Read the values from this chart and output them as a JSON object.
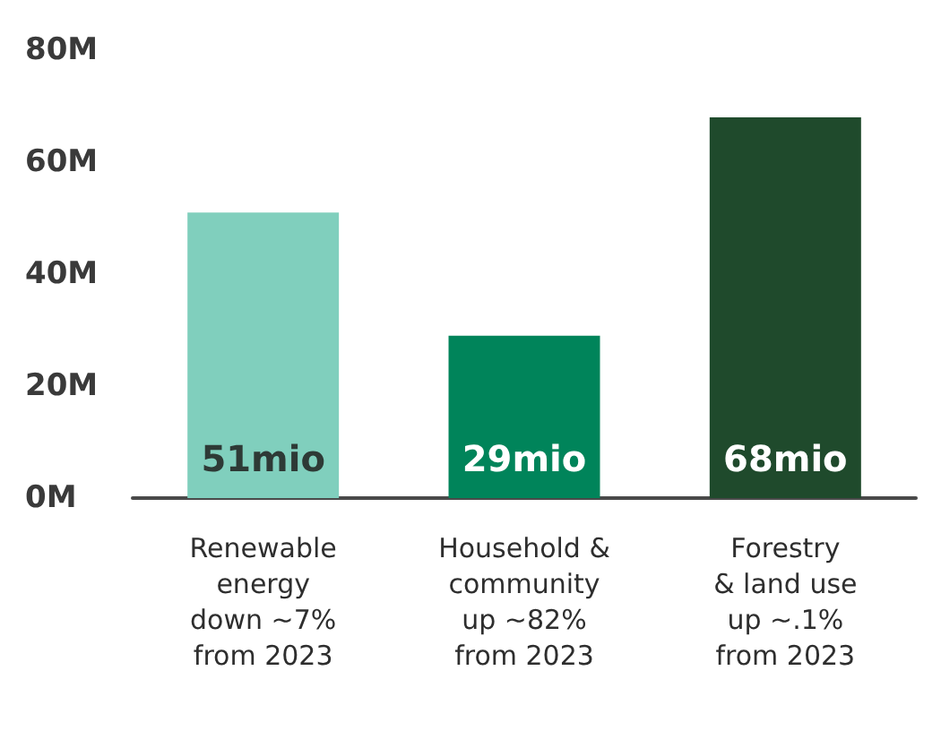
{
  "chart_data": {
    "type": "bar",
    "categories": [
      "Renewable\nenergy\ndown ~7%\nfrom 2023",
      "Household &\ncommunity\nup ~82%\nfrom 2023",
      "Forestry\n& land use\nup ~.1%\nfrom 2023"
    ],
    "values": [
      51,
      29,
      68
    ],
    "colors": [
      "#80cfbd",
      "#00845a",
      "#1f4a2c"
    ],
    "value_labels": [
      "51mio",
      "29mio",
      "68mio"
    ],
    "ylim": [
      0,
      80
    ],
    "yticks": [
      {
        "value": 0,
        "label": "0M"
      },
      {
        "value": 20,
        "label": "20M"
      },
      {
        "value": 40,
        "label": "40M"
      },
      {
        "value": 60,
        "label": "60M"
      },
      {
        "value": 80,
        "label": "80M"
      }
    ],
    "grid": false
  }
}
